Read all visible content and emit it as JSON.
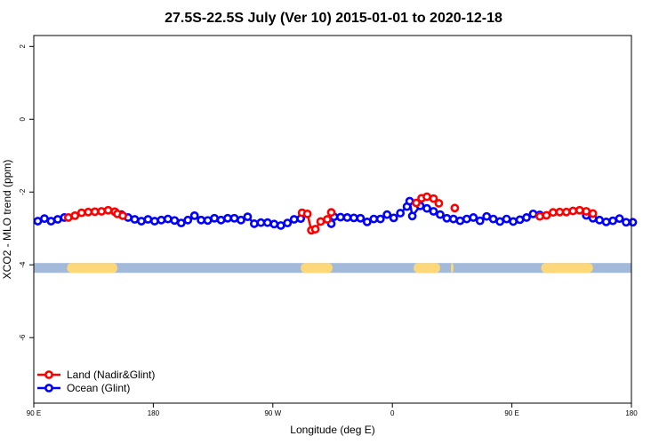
{
  "chart_data": {
    "type": "line",
    "title": "27.5S-22.5S July (Ver 10)   2015-01-01 to 2020-12-18",
    "xlabel": "Longitude (deg E)",
    "ylabel": "XCO2 - MLO trend (ppm)",
    "x_tick_labels": [
      "90 E",
      "180",
      "90 W",
      "0",
      "90 E",
      "180"
    ],
    "x_ticks": [
      90,
      180,
      270,
      360,
      450,
      540
    ],
    "xlim": [
      90,
      540
    ],
    "y_ticks": [
      2,
      0,
      -2,
      -4,
      -6
    ],
    "y_tick_labels": [
      "2",
      "0",
      "-2",
      "-4",
      "-6"
    ],
    "ylim": [
      -7.8,
      2.3
    ],
    "grid": false,
    "legend_position": "bottom-left",
    "land_mask": {
      "y_range": [
        -4.22,
        -3.95
      ],
      "ocean_color": "#a3b9d9",
      "land_color": "#fdd878",
      "land_spans": [
        [
          115,
          153
        ],
        [
          291,
          315
        ],
        [
          376,
          396
        ],
        [
          404,
          406
        ],
        [
          472,
          511
        ]
      ]
    },
    "series": [
      {
        "name": "Land (Nadir&Glint)",
        "color": "#ff0000",
        "x": [
          116,
          121,
          126,
          131,
          136,
          141,
          146,
          151,
          153,
          157,
          292,
          296,
          299,
          302,
          306,
          311,
          314,
          378,
          382,
          386,
          391,
          395,
          407,
          471,
          476,
          481,
          486,
          491,
          496,
          501,
          506,
          511
        ],
        "y": [
          -2.7,
          -2.65,
          -2.57,
          -2.55,
          -2.54,
          -2.53,
          -2.5,
          -2.54,
          -2.6,
          -2.65,
          -2.57,
          -2.6,
          -3.05,
          -3.02,
          -2.81,
          -2.75,
          -2.56,
          -2.3,
          -2.17,
          -2.13,
          -2.18,
          -2.31,
          -2.44,
          -2.67,
          -2.64,
          -2.56,
          -2.55,
          -2.55,
          -2.52,
          -2.5,
          -2.53,
          -2.59
        ]
      },
      {
        "name": "Ocean (Glint)",
        "color": "#0000ff",
        "x": [
          93,
          98,
          103,
          108,
          113,
          156,
          161,
          166,
          171,
          176,
          181,
          186,
          191,
          196,
          201,
          206,
          211,
          216,
          221,
          226,
          231,
          236,
          241,
          246,
          251,
          256,
          261,
          266,
          271,
          276,
          281,
          286,
          291,
          314,
          316,
          321,
          326,
          331,
          336,
          341,
          346,
          351,
          356,
          361,
          366,
          371,
          373,
          375,
          381,
          386,
          391,
          396,
          401,
          406,
          411,
          416,
          421,
          426,
          431,
          436,
          441,
          446,
          451,
          456,
          461,
          466,
          471,
          506,
          511,
          516,
          521,
          526,
          531,
          536,
          541
        ],
        "y": [
          -2.8,
          -2.73,
          -2.8,
          -2.75,
          -2.7,
          -2.62,
          -2.7,
          -2.75,
          -2.8,
          -2.75,
          -2.8,
          -2.77,
          -2.74,
          -2.78,
          -2.85,
          -2.77,
          -2.65,
          -2.77,
          -2.78,
          -2.72,
          -2.77,
          -2.72,
          -2.72,
          -2.77,
          -2.68,
          -2.87,
          -2.84,
          -2.84,
          -2.88,
          -2.92,
          -2.85,
          -2.75,
          -2.73,
          -2.87,
          -2.68,
          -2.69,
          -2.7,
          -2.71,
          -2.72,
          -2.82,
          -2.74,
          -2.74,
          -2.62,
          -2.71,
          -2.58,
          -2.4,
          -2.25,
          -2.66,
          -2.38,
          -2.45,
          -2.53,
          -2.62,
          -2.72,
          -2.74,
          -2.79,
          -2.74,
          -2.7,
          -2.79,
          -2.67,
          -2.74,
          -2.81,
          -2.74,
          -2.81,
          -2.76,
          -2.7,
          -2.6,
          -2.63,
          -2.64,
          -2.72,
          -2.77,
          -2.82,
          -2.79,
          -2.73,
          -2.83,
          -2.83
        ]
      }
    ]
  }
}
